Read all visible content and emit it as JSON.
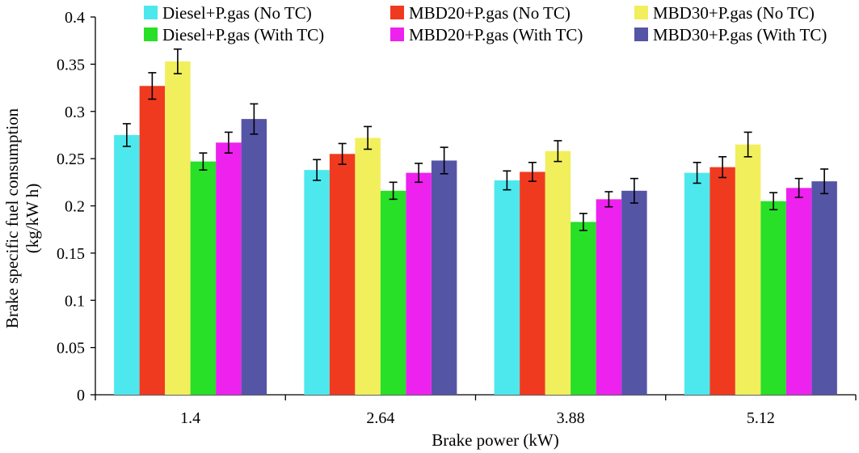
{
  "chart_data": {
    "type": "bar",
    "categories": [
      "1.4",
      "2.64",
      "3.88",
      "5.12"
    ],
    "xlabel": "Brake power (kW)",
    "ylabel": "Brake specific fuel consumption",
    "ylabel_unit": "(kg/kW h)",
    "ylim": [
      0,
      0.4
    ],
    "yticks": [
      "0",
      "0.05",
      "0.1",
      "0.15",
      "0.2",
      "0.25",
      "0.3",
      "0.35",
      "0.4"
    ],
    "grid": false,
    "legend_position": "top",
    "series": [
      {
        "name": "Diesel+P.gas (No TC)",
        "color": "#4de8ee",
        "values": [
          0.275,
          0.238,
          0.227,
          0.235
        ],
        "errors": [
          0.012,
          0.011,
          0.01,
          0.011
        ]
      },
      {
        "name": "MBD20+P.gas (No TC)",
        "color": "#f03a20",
        "values": [
          0.327,
          0.255,
          0.236,
          0.241
        ],
        "errors": [
          0.014,
          0.011,
          0.01,
          0.011
        ]
      },
      {
        "name": "MBD30+P.gas (No TC)",
        "color": "#f2ef5c",
        "values": [
          0.353,
          0.272,
          0.258,
          0.265
        ],
        "errors": [
          0.013,
          0.012,
          0.011,
          0.013
        ]
      },
      {
        "name": "Diesel+P.gas (With TC)",
        "color": "#27e027",
        "values": [
          0.247,
          0.216,
          0.183,
          0.205
        ],
        "errors": [
          0.009,
          0.009,
          0.009,
          0.009
        ]
      },
      {
        "name": "MBD20+P.gas (With TC)",
        "color": "#ee22ee",
        "values": [
          0.267,
          0.235,
          0.207,
          0.219
        ],
        "errors": [
          0.011,
          0.01,
          0.008,
          0.01
        ]
      },
      {
        "name": "MBD30+P.gas (With TC)",
        "color": "#5555a6",
        "values": [
          0.292,
          0.248,
          0.216,
          0.226
        ],
        "errors": [
          0.016,
          0.014,
          0.013,
          0.013
        ]
      }
    ]
  }
}
